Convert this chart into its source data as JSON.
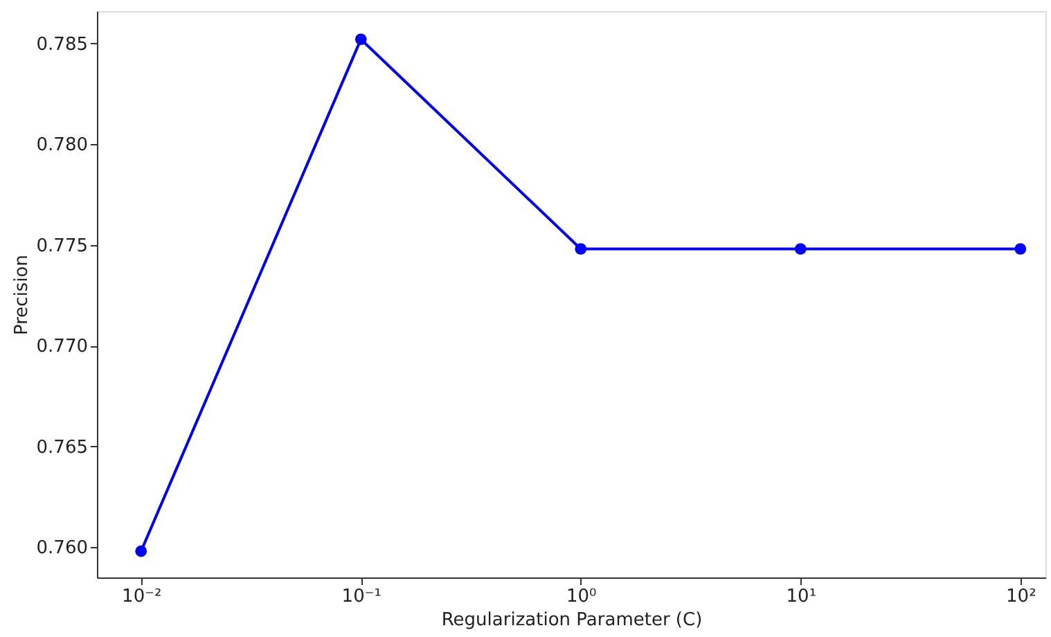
{
  "chart_data": {
    "type": "line",
    "xlabel": "Regularization Parameter (C)",
    "ylabel": "Precision",
    "x": [
      0.01,
      0.1,
      1,
      10,
      100
    ],
    "series": [
      {
        "color": "#0000ff",
        "values": [
          0.7598,
          0.7852,
          0.7748,
          0.7748,
          0.7748
        ]
      }
    ],
    "log": "x",
    "xlim": [
      0.0063,
      130
    ],
    "ylim": [
      0.7585,
      0.7866
    ],
    "xticks": [
      {
        "value": 0.01,
        "label": "10⁻²"
      },
      {
        "value": 0.1,
        "label": "10⁻¹"
      },
      {
        "value": 1,
        "label": "10⁰"
      },
      {
        "value": 10,
        "label": "10¹"
      },
      {
        "value": 100,
        "label": "10²"
      }
    ],
    "yticks": [
      {
        "value": 0.76,
        "label": "0.760"
      },
      0.765,
      {
        "value": 0.77,
        "label": "0.770"
      },
      0.775,
      {
        "value": 0.78,
        "label": "0.780"
      },
      0.785
    ],
    "grid": false,
    "marker": "circle",
    "line_style": "solid"
  }
}
